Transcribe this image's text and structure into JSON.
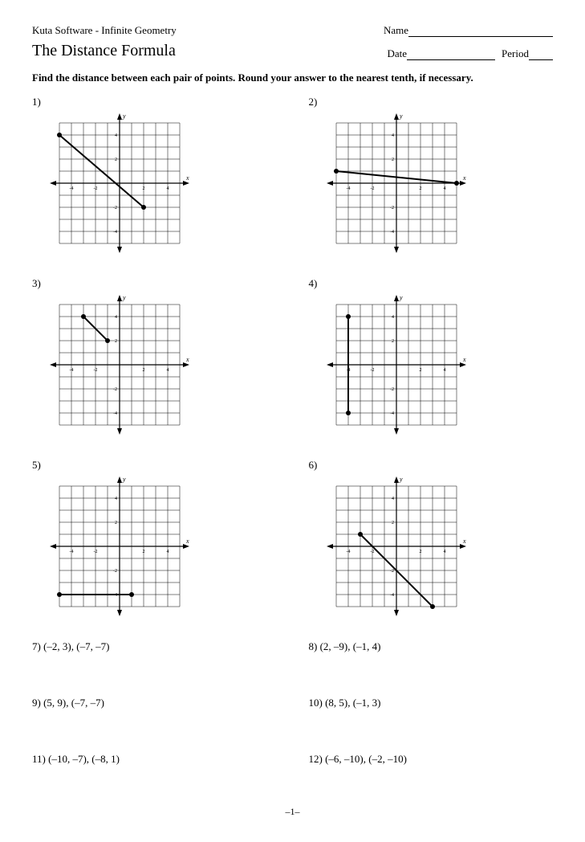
{
  "header": {
    "software": "Kuta Software - Infinite Geometry",
    "name_label": "Name",
    "date_label": "Date",
    "period_label": "Period"
  },
  "title": "The Distance Formula",
  "instruction": "Find the distance between each pair of points.  Round your answer to the nearest tenth, if necessary.",
  "footer": "–1–",
  "grid": {
    "xmin": -5,
    "xmax": 5,
    "ymin": -5,
    "ymax": 5,
    "cell": 15,
    "xticks": [
      -4,
      -2,
      2,
      4
    ],
    "yticks": [
      -4,
      -2,
      2,
      4
    ],
    "line_color": "#000000",
    "grid_color": "#000000",
    "tick_fontsize": 6
  },
  "problems": [
    {
      "n": "1)",
      "type": "graph",
      "p1": [
        -5,
        4
      ],
      "p2": [
        2,
        -2
      ]
    },
    {
      "n": "2)",
      "type": "graph",
      "p1": [
        -5,
        1
      ],
      "p2": [
        5,
        0
      ]
    },
    {
      "n": "3)",
      "type": "graph",
      "p1": [
        -3,
        4
      ],
      "p2": [
        -1,
        2
      ]
    },
    {
      "n": "4)",
      "type": "graph",
      "p1": [
        -4,
        4
      ],
      "p2": [
        -4,
        -4
      ]
    },
    {
      "n": "5)",
      "type": "graph",
      "p1": [
        -5,
        -4
      ],
      "p2": [
        1,
        -4
      ]
    },
    {
      "n": "6)",
      "type": "graph",
      "p1": [
        -3,
        1
      ],
      "p2": [
        3,
        -5
      ]
    },
    {
      "n": "7)",
      "type": "text",
      "pts": "(–2, 3),  (–7, –7)"
    },
    {
      "n": "8)",
      "type": "text",
      "pts": "(2, –9),  (–1, 4)"
    },
    {
      "n": "9)",
      "type": "text",
      "pts": "(5, 9),  (–7, –7)"
    },
    {
      "n": "10)",
      "type": "text",
      "pts": "(8, 5),  (–1, 3)"
    },
    {
      "n": "11)",
      "type": "text",
      "pts": "(–10, –7),  (–8, 1)"
    },
    {
      "n": "12)",
      "type": "text",
      "pts": "(–6, –10),  (–2, –10)"
    }
  ]
}
